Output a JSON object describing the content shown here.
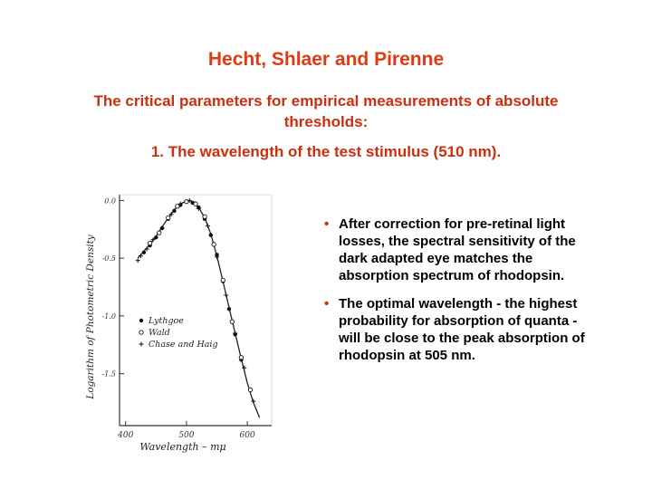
{
  "slide": {
    "title": "Hecht, Shlaer and Pirenne",
    "subtitle": "The critical parameters for empirical measurements of absolute thresholds:",
    "point1": "1. The wavelength of the test stimulus (510 nm).",
    "bullet_symbol": "•",
    "bullets": [
      "After correction for pre-retinal light losses, the spectral sensitivity of the dark adapted eye matches the absorption spectrum of rhodopsin.",
      "The optimal wavelength - the highest probability for absorption of quanta - will be close to the peak absorption of rhodopsin at 505 nm."
    ],
    "colors": {
      "title": "#e03a12",
      "subtitle": "#cc2e10",
      "bullet_dot": "#cc2e10"
    }
  },
  "chart_data": {
    "type": "scatter",
    "xlabel": "Wavelength – mμ",
    "ylabel": "Logarithm of Photometric Density",
    "x_ticks": [
      "400",
      "500",
      "600"
    ],
    "y_ticks": [
      "0.0",
      "-0.5",
      "-1.0",
      "-1.5"
    ],
    "xlim": [
      390,
      640
    ],
    "ylim": [
      -1.95,
      0.05
    ],
    "legend": [
      "Lythgoe",
      "Wald",
      "Chase and Haig"
    ],
    "legend_position": "lower-left",
    "curve": {
      "x": [
        420,
        430,
        440,
        450,
        460,
        470,
        480,
        490,
        500,
        505,
        510,
        520,
        530,
        540,
        550,
        560,
        570,
        580,
        590,
        600,
        610,
        620
      ],
      "y": [
        -0.5,
        -0.44,
        -0.38,
        -0.31,
        -0.23,
        -0.15,
        -0.08,
        -0.03,
        -0.005,
        0.0,
        -0.01,
        -0.06,
        -0.15,
        -0.29,
        -0.48,
        -0.7,
        -0.93,
        -1.15,
        -1.37,
        -1.58,
        -1.75,
        -1.88
      ]
    },
    "series": [
      {
        "name": "Lythgoe",
        "x": [
          430,
          440,
          450,
          460,
          470,
          480,
          490,
          500,
          510,
          520,
          530,
          540,
          550,
          560,
          570,
          580,
          590
        ],
        "y": [
          -0.45,
          -0.39,
          -0.32,
          -0.24,
          -0.16,
          -0.09,
          -0.04,
          -0.01,
          -0.02,
          -0.06,
          -0.16,
          -0.3,
          -0.47,
          -0.7,
          -0.94,
          -1.16,
          -1.38
        ]
      },
      {
        "name": "Wald",
        "x": [
          440,
          455,
          470,
          485,
          500,
          515,
          530,
          545,
          560,
          575,
          590,
          605
        ],
        "y": [
          -0.37,
          -0.28,
          -0.15,
          -0.05,
          -0.01,
          -0.03,
          -0.14,
          -0.38,
          -0.69,
          -1.05,
          -1.36,
          -1.64
        ]
      },
      {
        "name": "Chase and Haig",
        "x": [
          420,
          425,
          435,
          445,
          460,
          475,
          490,
          505,
          520,
          535,
          550,
          565,
          580,
          595,
          610
        ],
        "y": [
          -0.52,
          -0.48,
          -0.42,
          -0.34,
          -0.24,
          -0.12,
          -0.03,
          0.0,
          -0.07,
          -0.22,
          -0.49,
          -0.82,
          -1.15,
          -1.45,
          -1.74
        ]
      }
    ]
  }
}
